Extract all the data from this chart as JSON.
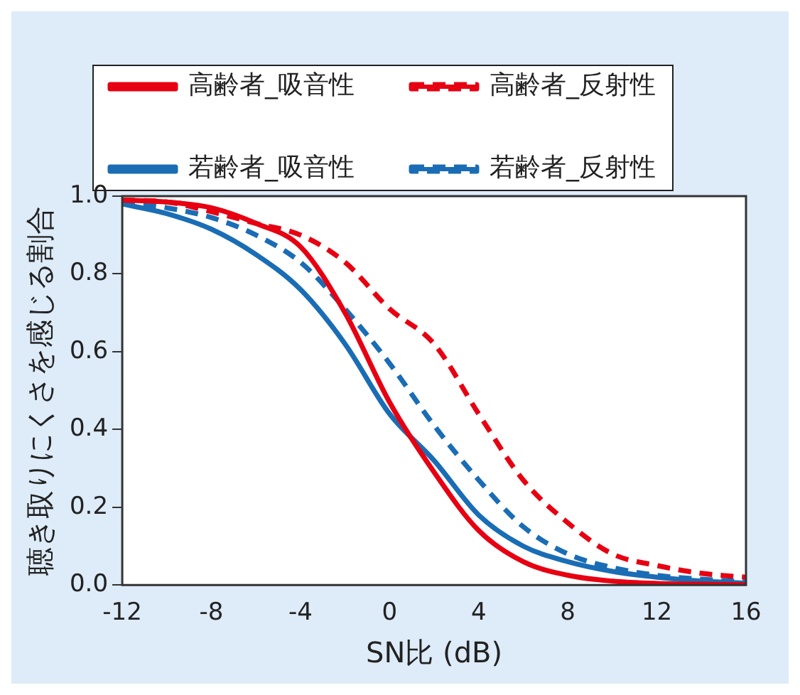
{
  "chart_data": {
    "type": "line",
    "xlabel": "SN比 (dB)",
    "ylabel": "聴き取りにくさを感じる割合",
    "x": [
      -12,
      -10,
      -8,
      -6,
      -4,
      -2,
      0,
      2,
      4,
      6,
      8,
      10,
      12,
      14,
      16
    ],
    "xlim": [
      -12,
      16
    ],
    "xticks": [
      -12,
      -8,
      -4,
      0,
      4,
      8,
      12,
      16
    ],
    "ylim": [
      0,
      1
    ],
    "yticks": [
      {
        "value": 0,
        "label": "0.0"
      },
      {
        "value": 0.2,
        "label": "0.2"
      },
      {
        "value": 0.4,
        "label": "0.4"
      },
      {
        "value": 0.6,
        "label": "0.6"
      },
      {
        "value": 0.8,
        "label": "0.8"
      },
      {
        "value": 1,
        "label": "1.0"
      }
    ],
    "legend": "top",
    "marker": "none",
    "series": [
      {
        "name": "高齢者_吸音性",
        "color": "#e60012",
        "line_style": "solid",
        "values": [
          0.99,
          0.985,
          0.97,
          0.93,
          0.87,
          0.7,
          0.47,
          0.29,
          0.14,
          0.06,
          0.025,
          0.01,
          0.004,
          0.002,
          0.001
        ]
      },
      {
        "name": "高齢者_反射性",
        "color": "#e60012",
        "line_style": "dashed",
        "values": [
          0.99,
          0.985,
          0.96,
          0.93,
          0.9,
          0.83,
          0.71,
          0.62,
          0.44,
          0.27,
          0.16,
          0.08,
          0.05,
          0.03,
          0.02
        ]
      },
      {
        "name": "若齢者_吸音性",
        "color": "#1a6db5",
        "line_style": "solid",
        "values": [
          0.98,
          0.955,
          0.915,
          0.85,
          0.76,
          0.62,
          0.44,
          0.32,
          0.18,
          0.1,
          0.06,
          0.035,
          0.02,
          0.01,
          0.005
        ]
      },
      {
        "name": "若齢者_反射性",
        "color": "#1a6db5",
        "line_style": "dashed",
        "values": [
          0.985,
          0.97,
          0.945,
          0.9,
          0.83,
          0.71,
          0.57,
          0.41,
          0.27,
          0.15,
          0.08,
          0.045,
          0.025,
          0.015,
          0.008
        ]
      }
    ]
  }
}
